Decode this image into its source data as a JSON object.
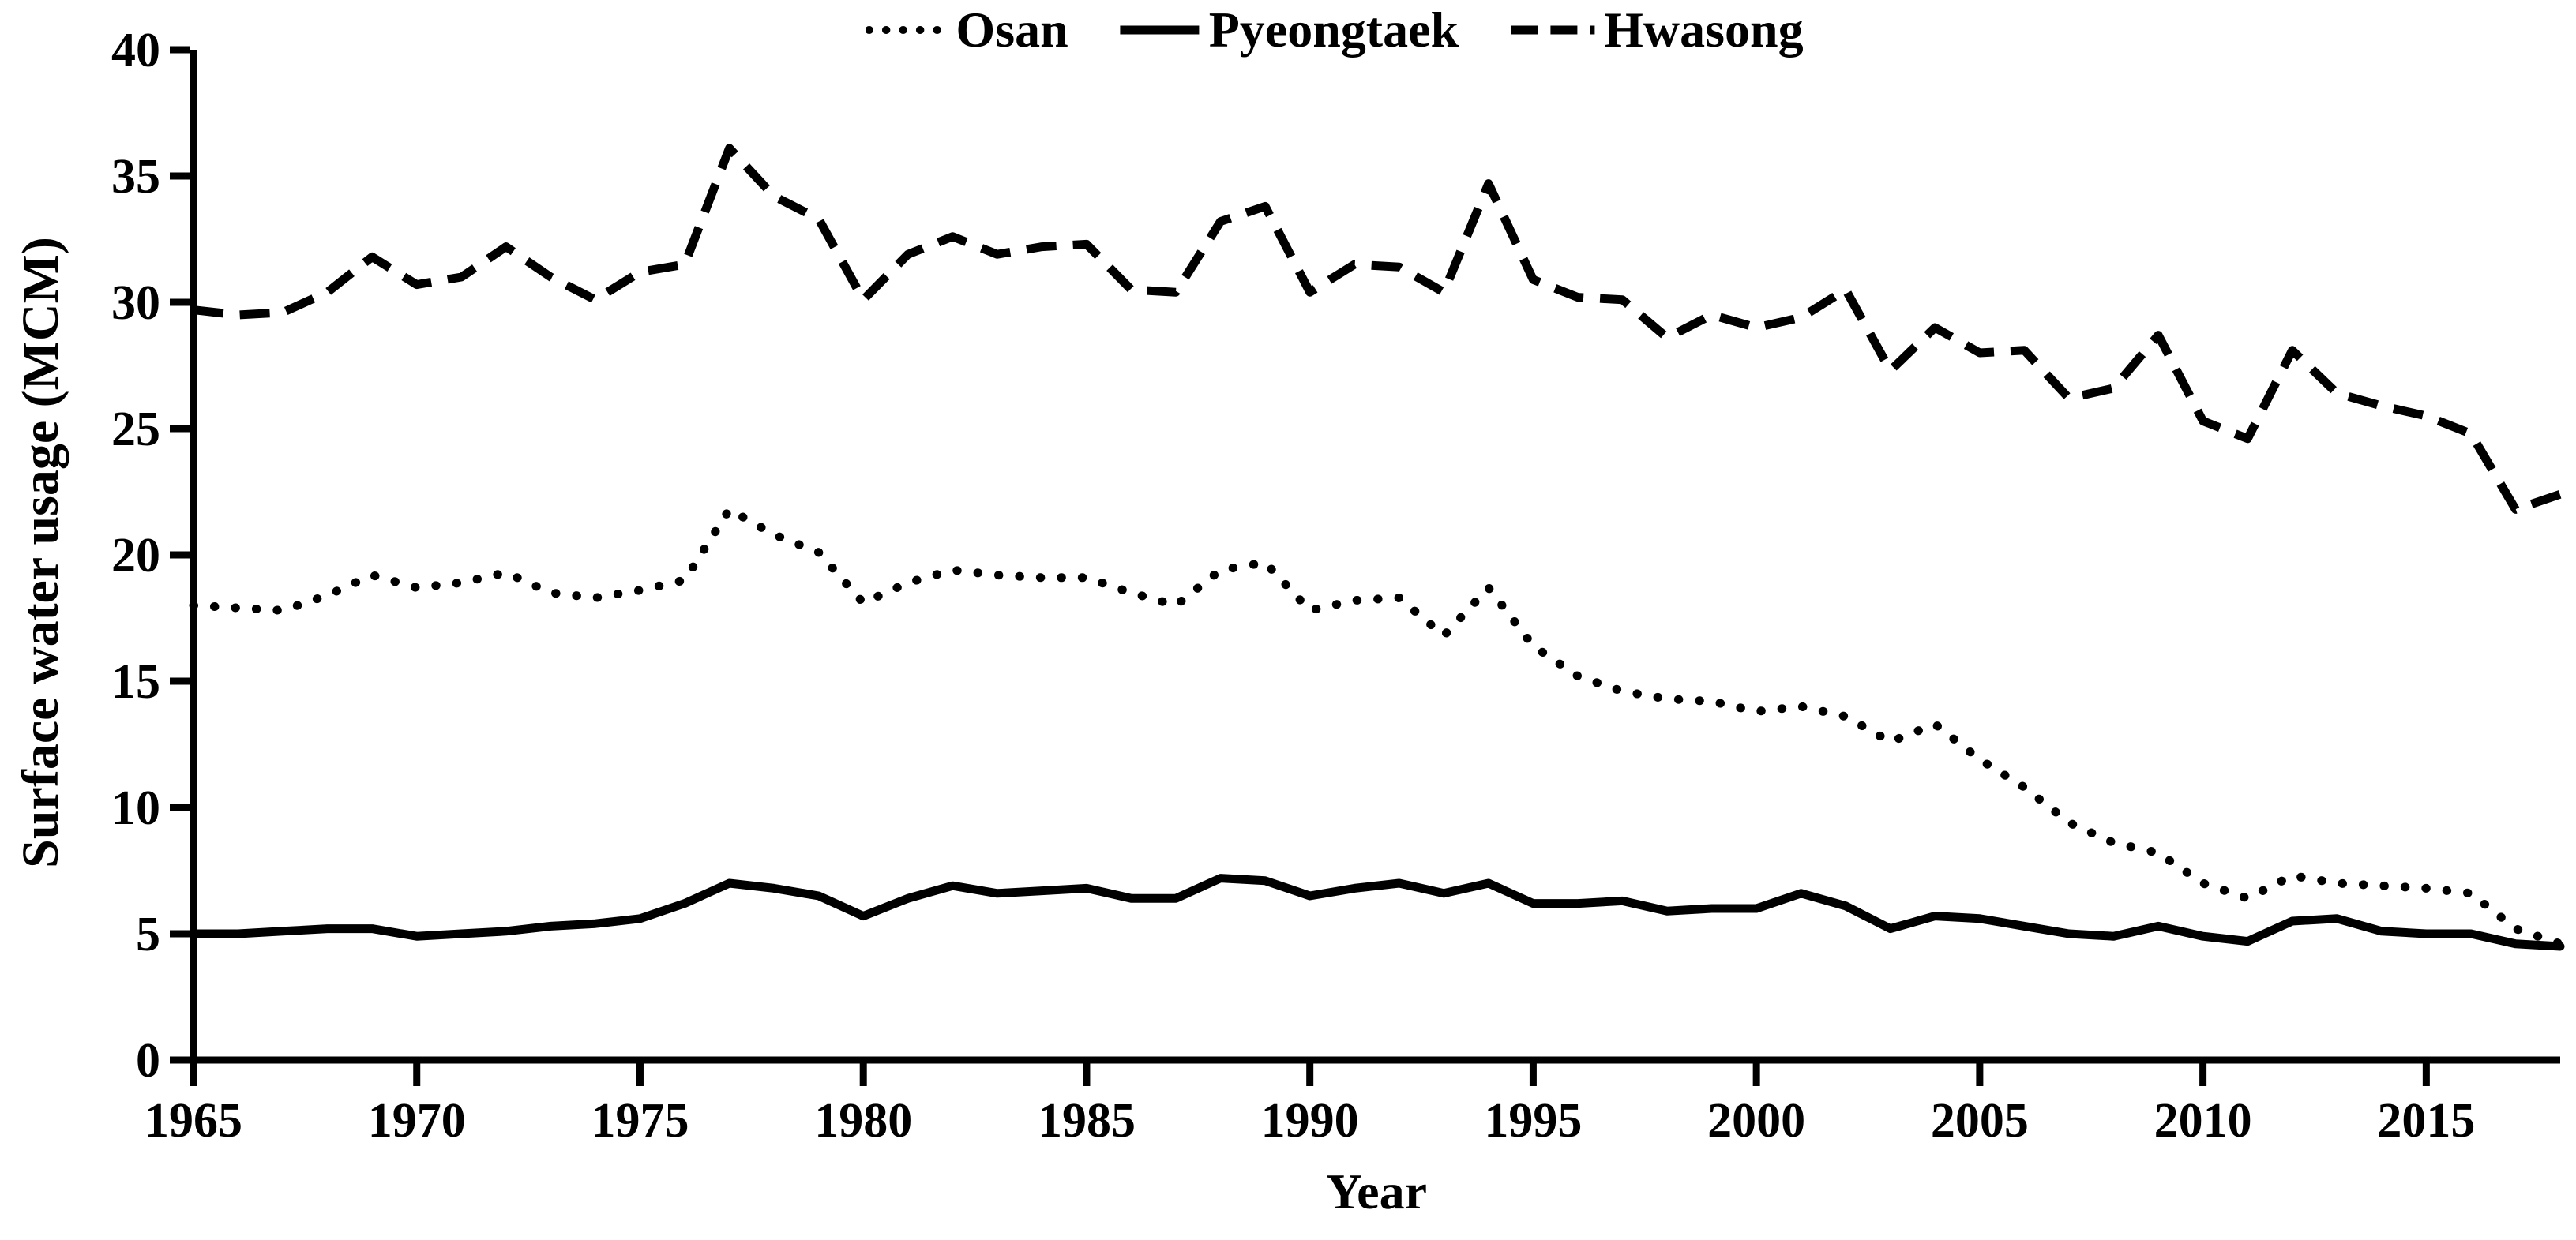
{
  "figure": {
    "background": "#ffffff",
    "line_color": "#000000"
  },
  "chart_data": {
    "type": "line",
    "title": "",
    "xlabel": "Year",
    "ylabel": "Surface water usage (MCM)",
    "x_start": 1965,
    "x_end": 2018,
    "x_tick_years": [
      1965,
      1970,
      1975,
      1980,
      1985,
      1990,
      1995,
      2000,
      2005,
      2010,
      2015
    ],
    "ylim": [
      0,
      40
    ],
    "y_ticks": [
      0,
      5,
      10,
      15,
      20,
      25,
      30,
      35,
      40
    ],
    "grid": false,
    "legend_position": "top-center",
    "series": [
      {
        "name": "Osan",
        "style": "dotted",
        "color": "#000000",
        "values": [
          18.0,
          17.9,
          17.8,
          18.4,
          19.2,
          18.7,
          18.9,
          19.3,
          18.5,
          18.3,
          18.6,
          19.0,
          21.8,
          20.8,
          20.1,
          18.1,
          18.9,
          19.4,
          19.2,
          19.1,
          19.1,
          18.5,
          18.0,
          19.4,
          19.7,
          17.8,
          18.2,
          18.3,
          16.8,
          18.7,
          16.4,
          15.2,
          14.6,
          14.3,
          14.2,
          13.8,
          14.0,
          13.6,
          12.6,
          13.3,
          11.9,
          10.8,
          9.4,
          8.6,
          8.2,
          7.0,
          6.4,
          7.3,
          7.0,
          6.9,
          6.8,
          6.6,
          5.2,
          4.6
        ]
      },
      {
        "name": "Pyeongtaek",
        "style": "solid",
        "color": "#000000",
        "values": [
          5.0,
          5.0,
          5.1,
          5.2,
          5.2,
          4.9,
          5.0,
          5.1,
          5.3,
          5.4,
          5.6,
          6.2,
          7.0,
          6.8,
          6.5,
          5.7,
          6.4,
          6.9,
          6.6,
          6.7,
          6.8,
          6.4,
          6.4,
          7.2,
          7.1,
          6.5,
          6.8,
          7.0,
          6.6,
          7.0,
          6.2,
          6.2,
          6.3,
          5.9,
          6.0,
          6.0,
          6.6,
          6.1,
          5.2,
          5.7,
          5.6,
          5.3,
          5.0,
          4.9,
          5.3,
          4.9,
          4.7,
          5.5,
          5.6,
          5.1,
          5.0,
          5.0,
          4.6,
          4.5
        ]
      },
      {
        "name": "Hwasong",
        "style": "dashed",
        "color": "#000000",
        "values": [
          29.7,
          29.5,
          29.6,
          30.4,
          31.8,
          30.7,
          31.0,
          32.2,
          31.0,
          30.1,
          31.2,
          31.5,
          36.1,
          34.2,
          33.3,
          30.1,
          31.9,
          32.6,
          31.9,
          32.2,
          32.3,
          30.5,
          30.4,
          33.2,
          33.8,
          30.4,
          31.5,
          31.4,
          30.4,
          34.7,
          30.9,
          30.2,
          30.1,
          28.6,
          29.5,
          29.0,
          29.4,
          30.5,
          27.3,
          29.0,
          28.0,
          28.1,
          26.2,
          26.6,
          28.7,
          25.3,
          24.6,
          28.1,
          26.4,
          25.9,
          25.5,
          24.8,
          21.8,
          22.4
        ]
      }
    ]
  }
}
